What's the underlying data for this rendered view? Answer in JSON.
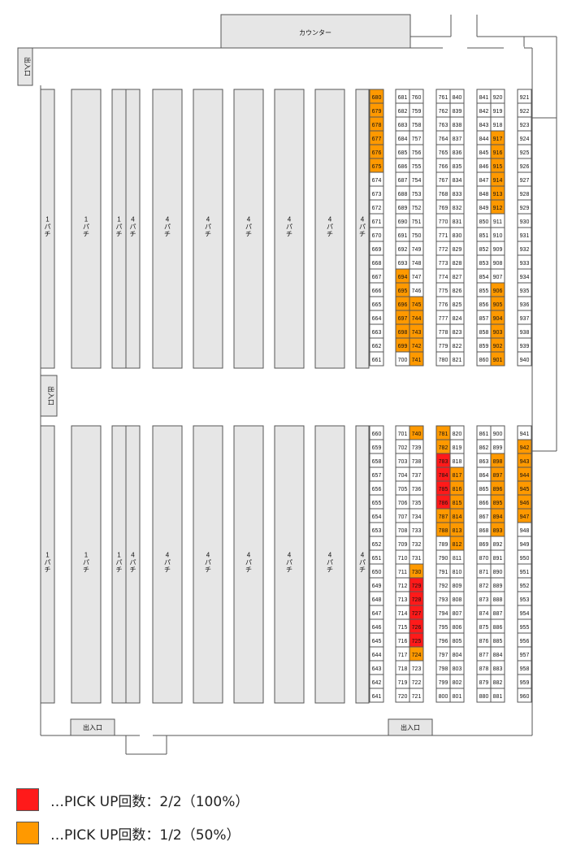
{
  "labels": {
    "counter": "カウンター",
    "entrance": "出入口",
    "pachinko_1": "1パチ",
    "pachinko_4": "4パチ"
  },
  "colors": {
    "full": "#ff1a1a",
    "half": "#ff9900",
    "normal": "#ffffff",
    "bank": "#e6e6e6",
    "line": "#555555"
  },
  "upper_columns": {
    "c1_left": [
      680,
      679,
      678,
      677,
      676,
      675,
      674,
      673,
      672,
      671,
      670,
      669,
      668,
      667,
      666,
      665,
      664,
      663,
      662,
      661
    ],
    "c2_left": [
      681,
      682,
      683,
      684,
      685,
      686,
      687,
      688,
      689,
      690,
      691,
      692,
      693,
      694,
      695,
      696,
      697,
      698,
      699,
      700
    ],
    "c2_right": [
      760,
      759,
      758,
      757,
      756,
      755,
      754,
      753,
      752,
      751,
      750,
      749,
      748,
      747,
      746,
      745,
      744,
      743,
      742,
      741
    ],
    "c3_left": [
      761,
      762,
      763,
      764,
      765,
      766,
      767,
      768,
      769,
      770,
      771,
      772,
      773,
      774,
      775,
      776,
      777,
      778,
      779,
      780
    ],
    "c3_right": [
      840,
      839,
      838,
      837,
      836,
      835,
      834,
      833,
      832,
      831,
      830,
      829,
      828,
      827,
      826,
      825,
      824,
      823,
      822,
      821
    ],
    "c4_left": [
      841,
      842,
      843,
      844,
      845,
      846,
      847,
      848,
      849,
      850,
      851,
      852,
      853,
      854,
      855,
      856,
      857,
      858,
      859,
      860
    ],
    "c4_right": [
      920,
      919,
      918,
      917,
      916,
      915,
      914,
      913,
      912,
      911,
      910,
      909,
      908,
      907,
      906,
      905,
      904,
      903,
      902,
      901
    ],
    "c5_single": [
      921,
      922,
      923,
      924,
      925,
      926,
      927,
      928,
      929,
      930,
      931,
      932,
      933,
      934,
      935,
      936,
      937,
      938,
      939,
      940
    ]
  },
  "lower_columns": {
    "c1_left": [
      660,
      659,
      658,
      657,
      656,
      655,
      654,
      653,
      652,
      651,
      650,
      649,
      648,
      647,
      646,
      645,
      644,
      643,
      642,
      641
    ],
    "c2_left": [
      701,
      702,
      703,
      704,
      705,
      706,
      707,
      708,
      709,
      710,
      711,
      712,
      713,
      714,
      715,
      716,
      717,
      718,
      719,
      720
    ],
    "c2_right": [
      740,
      739,
      738,
      737,
      736,
      735,
      734,
      733,
      732,
      731,
      730,
      729,
      728,
      727,
      726,
      725,
      724,
      723,
      722,
      721
    ],
    "c3_left": [
      781,
      782,
      783,
      784,
      785,
      786,
      787,
      788,
      789,
      790,
      791,
      792,
      793,
      794,
      795,
      796,
      797,
      798,
      799,
      800
    ],
    "c3_right": [
      820,
      819,
      818,
      817,
      816,
      815,
      814,
      813,
      812,
      811,
      810,
      809,
      808,
      807,
      806,
      805,
      804,
      803,
      802,
      801
    ],
    "c4_left": [
      861,
      862,
      863,
      864,
      865,
      866,
      867,
      868,
      869,
      870,
      871,
      872,
      873,
      874,
      875,
      876,
      877,
      878,
      879,
      880
    ],
    "c4_right": [
      900,
      899,
      898,
      897,
      896,
      895,
      894,
      893,
      892,
      891,
      890,
      889,
      888,
      887,
      886,
      885,
      884,
      883,
      882,
      881
    ],
    "c5_single": [
      941,
      942,
      943,
      944,
      945,
      946,
      947,
      948,
      949,
      950,
      951,
      952,
      953,
      954,
      955,
      956,
      957,
      958,
      959,
      960
    ]
  },
  "pickup_full": [
    729,
    728,
    727,
    726,
    725,
    783,
    784,
    785,
    786
  ],
  "pickup_half": [
    680,
    679,
    678,
    677,
    676,
    675,
    694,
    695,
    696,
    697,
    698,
    699,
    745,
    744,
    743,
    742,
    741,
    917,
    916,
    915,
    914,
    913,
    912,
    906,
    905,
    904,
    903,
    902,
    901,
    740,
    730,
    724,
    781,
    782,
    787,
    788,
    817,
    816,
    815,
    814,
    813,
    812,
    898,
    897,
    896,
    895,
    894,
    893,
    942,
    943,
    944,
    945,
    946,
    947
  ],
  "legend": [
    {
      "color": "#ff1a1a",
      "text": "…PICK UP回数：2/2（100%）"
    },
    {
      "color": "#ff9900",
      "text": "…PICK UP回数：1/2（50%）"
    }
  ]
}
